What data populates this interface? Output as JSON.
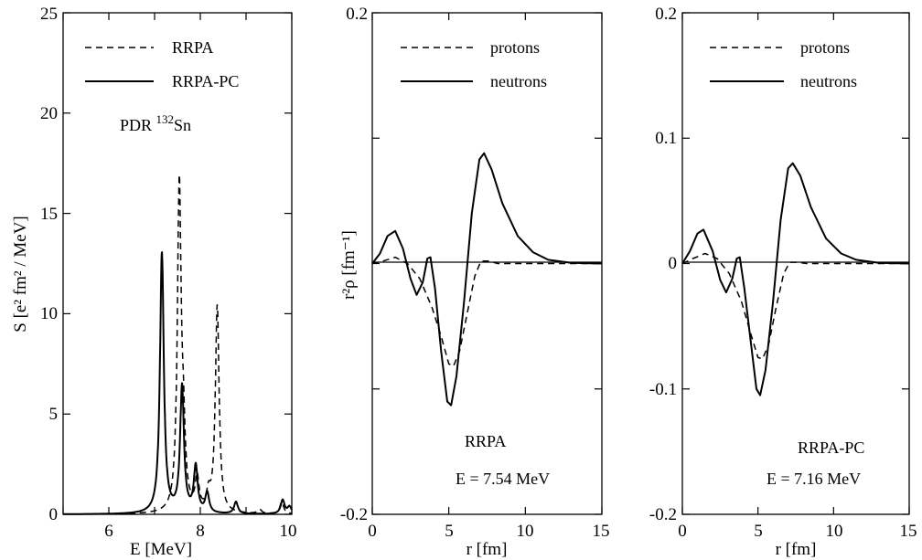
{
  "chart_data": [
    {
      "type": "line",
      "xlabel": "E [MeV]",
      "ylabel": "S [e² fm² / MeV]",
      "xlim": [
        5,
        10
      ],
      "ylim": [
        0,
        25
      ],
      "xticks": [
        "6",
        "8",
        "10"
      ],
      "yticks": [
        "0",
        "5",
        "10",
        "15",
        "20",
        "25"
      ],
      "legend": {
        "placement": "top-left",
        "entries": [
          "RRPA",
          "RRPA-PC"
        ]
      },
      "annotation": {
        "prefix": "PDR ",
        "mass": "132",
        "element": "Sn"
      },
      "series": [
        {
          "name": "RRPA",
          "style": "dashed",
          "peaks": [
            {
              "x": 7.54,
              "h": 16.2,
              "w": 0.05
            },
            {
              "x": 7.63,
              "h": 3.0,
              "w": 0.05
            },
            {
              "x": 7.93,
              "h": 1.6,
              "w": 0.05
            },
            {
              "x": 8.18,
              "h": 0.8,
              "w": 0.05
            },
            {
              "x": 8.37,
              "h": 10.3,
              "w": 0.05
            },
            {
              "x": 9.3,
              "h": 0.2,
              "w": 0.05
            },
            {
              "x": 9.78,
              "h": 0.6,
              "w": 0.05
            }
          ]
        },
        {
          "name": "RRPA-PC",
          "style": "solid",
          "peaks": [
            {
              "x": 7.16,
              "h": 13.0,
              "w": 0.05
            },
            {
              "x": 7.6,
              "h": 6.3,
              "w": 0.05
            },
            {
              "x": 7.9,
              "h": 2.3,
              "w": 0.05
            },
            {
              "x": 8.15,
              "h": 1.0,
              "w": 0.05
            },
            {
              "x": 8.78,
              "h": 0.6,
              "w": 0.05
            },
            {
              "x": 9.8,
              "h": 0.7,
              "w": 0.05
            },
            {
              "x": 9.95,
              "h": 0.35,
              "w": 0.05
            }
          ]
        }
      ]
    },
    {
      "type": "line",
      "xlabel": "r [fm]",
      "ylabel": "r²ρ [fm⁻¹]",
      "xlim": [
        0,
        15
      ],
      "ylim": [
        -0.2,
        0.2
      ],
      "xticks": [
        "0",
        "5",
        "10",
        "15"
      ],
      "yticks": [
        "-0.2",
        "0.2"
      ],
      "legend": {
        "placement": "top-left",
        "entries": [
          "protons",
          "neutrons"
        ]
      },
      "title": "RRPA",
      "energy": "E = 7.54 MeV",
      "series": [
        {
          "name": "protons",
          "style": "dashed",
          "points": [
            [
              0,
              0
            ],
            [
              0.7,
              0.002
            ],
            [
              1.5,
              0.005
            ],
            [
              2.3,
              0.0
            ],
            [
              3.1,
              -0.012
            ],
            [
              3.9,
              -0.035
            ],
            [
              4.5,
              -0.058
            ],
            [
              5.0,
              -0.08
            ],
            [
              5.3,
              -0.082
            ],
            [
              5.7,
              -0.07
            ],
            [
              6.2,
              -0.04
            ],
            [
              6.7,
              -0.01
            ],
            [
              7.1,
              0.002
            ],
            [
              7.6,
              0.002
            ],
            [
              8.2,
              0
            ],
            [
              15,
              0
            ]
          ]
        },
        {
          "name": "neutrons",
          "style": "solid",
          "points": [
            [
              0,
              0
            ],
            [
              0.5,
              0.008
            ],
            [
              1,
              0.022
            ],
            [
              1.5,
              0.026
            ],
            [
              2,
              0.012
            ],
            [
              2.5,
              -0.012
            ],
            [
              2.9,
              -0.025
            ],
            [
              3.3,
              -0.015
            ],
            [
              3.6,
              0.004
            ],
            [
              3.8,
              0.005
            ],
            [
              4.1,
              -0.02
            ],
            [
              4.5,
              -0.07
            ],
            [
              4.9,
              -0.11
            ],
            [
              5.15,
              -0.113
            ],
            [
              5.5,
              -0.09
            ],
            [
              6.0,
              -0.03
            ],
            [
              6.5,
              0.04
            ],
            [
              7.0,
              0.083
            ],
            [
              7.3,
              0.088
            ],
            [
              7.8,
              0.075
            ],
            [
              8.5,
              0.048
            ],
            [
              9.5,
              0.022
            ],
            [
              10.5,
              0.009
            ],
            [
              11.5,
              0.003
            ],
            [
              13,
              0.0005
            ],
            [
              15,
              0
            ]
          ]
        }
      ]
    },
    {
      "type": "line",
      "xlabel": "r [fm]",
      "ylabel": "",
      "xlim": [
        0,
        15
      ],
      "ylim": [
        -0.2,
        0.2
      ],
      "xticks": [
        "0",
        "5",
        "10",
        "15"
      ],
      "yticks": [
        "-0.2",
        "-0.1",
        "0",
        "0.1",
        "0.2"
      ],
      "legend": {
        "placement": "top-left",
        "entries": [
          "protons",
          "neutrons"
        ]
      },
      "title": "RRPA-PC",
      "energy": "E = 7.16 MeV",
      "series": [
        {
          "name": "protons",
          "style": "dashed",
          "points": [
            [
              0,
              0
            ],
            [
              0.7,
              0.004
            ],
            [
              1.5,
              0.008
            ],
            [
              2.3,
              0.004
            ],
            [
              3.1,
              -0.008
            ],
            [
              3.9,
              -0.03
            ],
            [
              4.5,
              -0.055
            ],
            [
              5.0,
              -0.075
            ],
            [
              5.3,
              -0.076
            ],
            [
              5.7,
              -0.065
            ],
            [
              6.2,
              -0.035
            ],
            [
              6.7,
              -0.008
            ],
            [
              7.1,
              0.001
            ],
            [
              7.6,
              0.001
            ],
            [
              8.2,
              0
            ],
            [
              15,
              0
            ]
          ]
        },
        {
          "name": "neutrons",
          "style": "solid",
          "points": [
            [
              0,
              0
            ],
            [
              0.5,
              0.01
            ],
            [
              1,
              0.024
            ],
            [
              1.4,
              0.027
            ],
            [
              2,
              0.01
            ],
            [
              2.5,
              -0.013
            ],
            [
              2.9,
              -0.023
            ],
            [
              3.3,
              -0.012
            ],
            [
              3.6,
              0.004
            ],
            [
              3.8,
              0.005
            ],
            [
              4.1,
              -0.02
            ],
            [
              4.5,
              -0.06
            ],
            [
              4.9,
              -0.1
            ],
            [
              5.15,
              -0.105
            ],
            [
              5.5,
              -0.085
            ],
            [
              6.0,
              -0.03
            ],
            [
              6.5,
              0.035
            ],
            [
              7.0,
              0.076
            ],
            [
              7.3,
              0.08
            ],
            [
              7.8,
              0.07
            ],
            [
              8.5,
              0.045
            ],
            [
              9.5,
              0.02
            ],
            [
              10.5,
              0.008
            ],
            [
              11.5,
              0.003
            ],
            [
              13,
              0.0005
            ],
            [
              15,
              0
            ]
          ]
        }
      ]
    }
  ]
}
